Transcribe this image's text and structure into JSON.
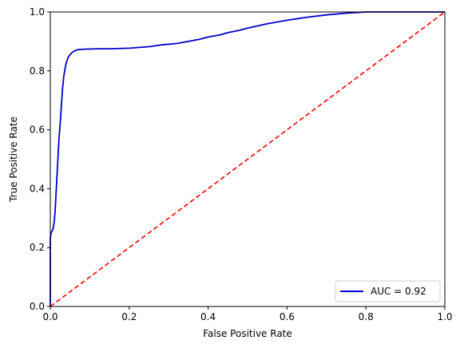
{
  "chart_data": {
    "type": "line",
    "title": "",
    "xlabel": "False Positive Rate",
    "ylabel": "True Positive Rate",
    "xlim": [
      0.0,
      1.0
    ],
    "ylim": [
      0.0,
      1.0
    ],
    "xticks": [
      "0.0",
      "0.2",
      "0.4",
      "0.6",
      "0.8",
      "1.0"
    ],
    "yticks": [
      "0.0",
      "0.2",
      "0.4",
      "0.6",
      "0.8",
      "1.0"
    ],
    "grid": false,
    "legend_position": "lower-right",
    "series": [
      {
        "name": "AUC = 0.92",
        "color": "#0000cc",
        "style": "solid",
        "x": [
          0.0,
          0.0,
          0.002,
          0.004,
          0.006,
          0.008,
          0.01,
          0.012,
          0.014,
          0.016,
          0.018,
          0.02,
          0.022,
          0.025,
          0.028,
          0.031,
          0.034,
          0.037,
          0.04,
          0.043,
          0.046,
          0.05,
          0.055,
          0.06,
          0.065,
          0.07,
          0.08,
          0.09,
          0.1,
          0.12,
          0.15,
          0.2,
          0.25,
          0.28,
          0.32,
          0.35,
          0.38,
          0.4,
          0.43,
          0.45,
          0.48,
          0.5,
          0.55,
          0.6,
          0.65,
          0.7,
          0.75,
          0.8,
          0.85,
          1.0
        ],
        "y": [
          0.0,
          0.23,
          0.25,
          0.255,
          0.26,
          0.27,
          0.29,
          0.32,
          0.37,
          0.42,
          0.47,
          0.52,
          0.57,
          0.62,
          0.68,
          0.74,
          0.78,
          0.805,
          0.825,
          0.838,
          0.848,
          0.855,
          0.862,
          0.867,
          0.87,
          0.872,
          0.873,
          0.874,
          0.874,
          0.875,
          0.875,
          0.877,
          0.882,
          0.888,
          0.893,
          0.9,
          0.908,
          0.915,
          0.922,
          0.93,
          0.938,
          0.945,
          0.96,
          0.972,
          0.982,
          0.99,
          0.996,
          1.0,
          1.0,
          1.0
        ]
      },
      {
        "name": "",
        "color": "#ff0000",
        "style": "dashed",
        "x": [
          0.0,
          1.0
        ],
        "y": [
          0.0,
          1.0
        ]
      }
    ]
  }
}
